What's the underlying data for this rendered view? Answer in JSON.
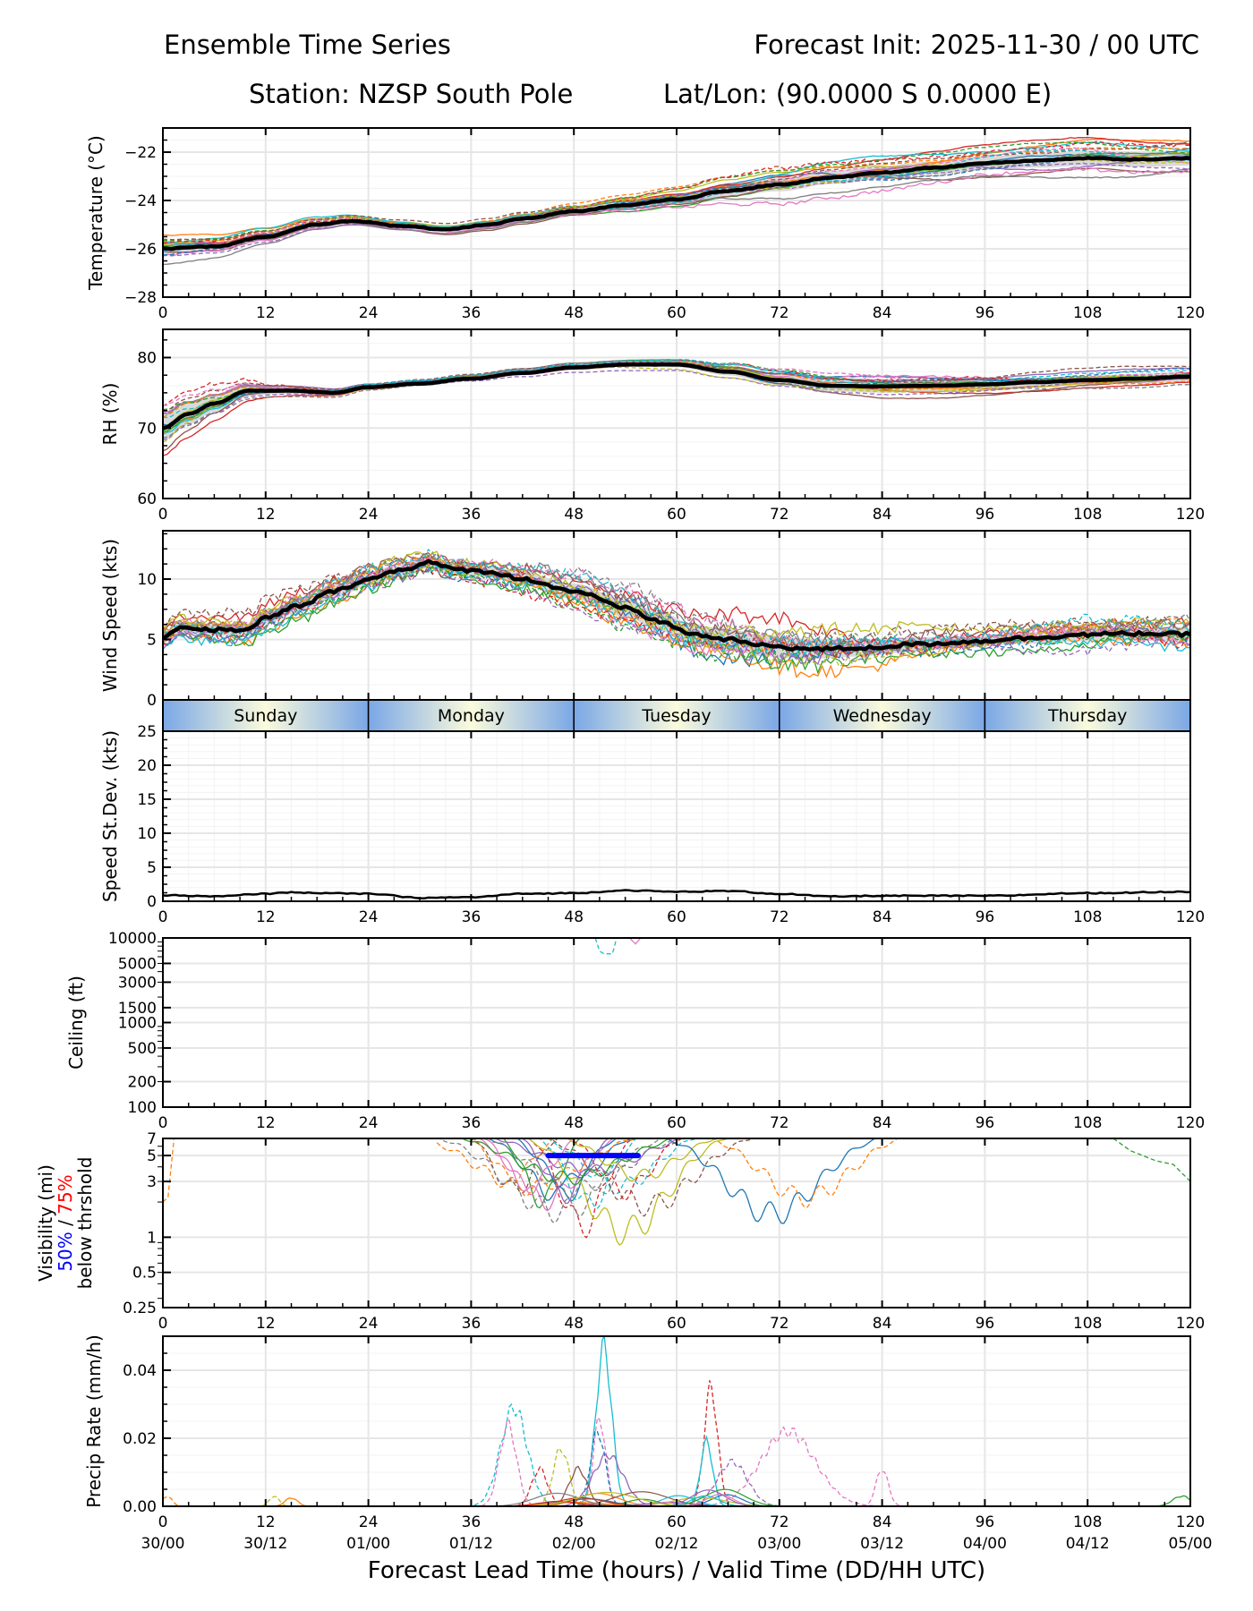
{
  "header": {
    "title_left": "Ensemble Time Series",
    "title_right": "Forecast Init: 2025-11-30 / 00 UTC",
    "station": "Station: NZSP South Pole",
    "latlon": "Lat/Lon: (90.0000 S 0.0000 E)"
  },
  "colors": {
    "mean": "#000000",
    "spread": "#d9d9d9",
    "grid": "#e6e6e6",
    "threshold50": "#0000ff",
    "threshold75": "#ff0000",
    "day_band_edge": "#7aa7e6",
    "day_band_center": "#fbfbdc",
    "members": [
      "#1f77b4",
      "#ff7f0e",
      "#2ca02c",
      "#d62728",
      "#9467bd",
      "#8c564b",
      "#e377c2",
      "#7f7f7f",
      "#bcbd22",
      "#17becf"
    ]
  },
  "chart_data": {
    "type": "line",
    "x_range": [
      0,
      120
    ],
    "x_ticks": [
      0,
      12,
      24,
      36,
      48,
      60,
      72,
      84,
      96,
      108,
      120
    ],
    "x_tick_labels_valid": [
      "30/00",
      "30/12",
      "01/00",
      "01/12",
      "02/00",
      "02/12",
      "03/00",
      "03/12",
      "04/00",
      "04/12",
      "05/00"
    ],
    "xlabel": "Forecast Lead Time (hours) / Valid Time (DD/HH UTC)",
    "grid": true,
    "day_band": [
      "Sunday",
      "Monday",
      "Tuesday",
      "Wednesday",
      "Thursday"
    ],
    "panels": [
      {
        "id": "temperature",
        "ylabel": "Temperature (°C)",
        "scale": "linear",
        "ylim": [
          -28,
          -21
        ],
        "y_ticks": [
          -28,
          -26,
          -24,
          -22
        ],
        "y_tick_labels": [
          "−28",
          "−26",
          "−24",
          "−22"
        ],
        "mean": [
          [
            0,
            -26.0
          ],
          [
            6,
            -25.9
          ],
          [
            12,
            -25.5
          ],
          [
            18,
            -25.0
          ],
          [
            22,
            -24.85
          ],
          [
            28,
            -25.05
          ],
          [
            33,
            -25.2
          ],
          [
            38,
            -25.0
          ],
          [
            42,
            -24.75
          ],
          [
            48,
            -24.45
          ],
          [
            54,
            -24.2
          ],
          [
            60,
            -23.95
          ],
          [
            66,
            -23.6
          ],
          [
            72,
            -23.35
          ],
          [
            78,
            -23.05
          ],
          [
            84,
            -22.85
          ],
          [
            90,
            -22.65
          ],
          [
            96,
            -22.45
          ],
          [
            102,
            -22.35
          ],
          [
            108,
            -22.25
          ],
          [
            114,
            -22.3
          ],
          [
            120,
            -22.25
          ]
        ],
        "spread": [
          0.5,
          0.3,
          0.2,
          0.2,
          0.3,
          0.4,
          0.6,
          0.6,
          0.6,
          0.7,
          0.7
        ],
        "members": 20
      },
      {
        "id": "rh",
        "ylabel": "RH (%)",
        "scale": "linear",
        "ylim": [
          60,
          84
        ],
        "y_ticks": [
          60,
          70,
          80
        ],
        "y_tick_labels": [
          "60",
          "70",
          "80"
        ],
        "mean": [
          [
            0,
            70.0
          ],
          [
            3,
            72.0
          ],
          [
            6,
            73.5
          ],
          [
            10,
            75.3
          ],
          [
            15,
            75.3
          ],
          [
            20,
            75.0
          ],
          [
            24,
            75.8
          ],
          [
            30,
            76.3
          ],
          [
            36,
            77.0
          ],
          [
            42,
            77.8
          ],
          [
            48,
            78.6
          ],
          [
            54,
            79.0
          ],
          [
            60,
            79.0
          ],
          [
            66,
            78.0
          ],
          [
            72,
            76.8
          ],
          [
            78,
            76.0
          ],
          [
            84,
            75.9
          ],
          [
            90,
            76.0
          ],
          [
            96,
            76.2
          ],
          [
            102,
            76.5
          ],
          [
            108,
            76.8
          ],
          [
            114,
            77.0
          ],
          [
            120,
            77.3
          ]
        ],
        "spread": [
          4,
          1.2,
          0.6,
          0.5,
          0.6,
          0.8,
          1.6,
          2.0,
          1.6,
          1.4,
          1.6
        ],
        "members": 20
      },
      {
        "id": "wind",
        "ylabel": "Wind Speed (kts)",
        "scale": "linear",
        "ylim": [
          0,
          14
        ],
        "y_ticks": [
          0,
          5,
          10
        ],
        "y_tick_labels": [
          "0",
          "5",
          "10"
        ],
        "mean": [
          [
            0,
            5.2
          ],
          [
            2,
            6.0
          ],
          [
            6,
            5.8
          ],
          [
            10,
            5.8
          ],
          [
            12,
            6.8
          ],
          [
            16,
            7.8
          ],
          [
            20,
            9.0
          ],
          [
            24,
            10.0
          ],
          [
            28,
            10.8
          ],
          [
            31,
            11.4
          ],
          [
            34,
            10.8
          ],
          [
            38,
            10.6
          ],
          [
            42,
            10.0
          ],
          [
            48,
            9.0
          ],
          [
            54,
            7.6
          ],
          [
            58,
            6.5
          ],
          [
            62,
            5.4
          ],
          [
            66,
            5.0
          ],
          [
            70,
            4.5
          ],
          [
            76,
            4.2
          ],
          [
            82,
            4.3
          ],
          [
            88,
            4.6
          ],
          [
            94,
            4.8
          ],
          [
            100,
            5.1
          ],
          [
            108,
            5.4
          ],
          [
            114,
            5.5
          ],
          [
            120,
            5.4
          ]
        ],
        "spread": [
          1.0,
          1.2,
          1.3,
          1.0,
          1.4,
          1.8,
          2.0,
          1.4,
          1.0,
          1.2,
          1.4
        ],
        "members": 20
      },
      {
        "id": "stdev",
        "ylabel": "Speed St.Dev. (kts)",
        "scale": "linear",
        "ylim": [
          0,
          25
        ],
        "y_ticks": [
          0,
          5,
          10,
          15,
          20,
          25
        ],
        "y_tick_labels": [
          "0",
          "5",
          "10",
          "15",
          "20",
          "25"
        ],
        "mean": [
          [
            0,
            0.9
          ],
          [
            6,
            0.7
          ],
          [
            12,
            1.1
          ],
          [
            14,
            1.3
          ],
          [
            24,
            1.1
          ],
          [
            30,
            0.5
          ],
          [
            36,
            0.6
          ],
          [
            42,
            1.1
          ],
          [
            48,
            1.2
          ],
          [
            54,
            1.6
          ],
          [
            60,
            1.4
          ],
          [
            66,
            1.5
          ],
          [
            72,
            1.1
          ],
          [
            78,
            0.7
          ],
          [
            84,
            0.8
          ],
          [
            96,
            0.8
          ],
          [
            108,
            1.2
          ],
          [
            120,
            1.4
          ]
        ],
        "members": 0
      },
      {
        "id": "ceiling",
        "ylabel": "Ceiling (ft)",
        "scale": "log",
        "ylim": [
          100,
          10000
        ],
        "y_ticks": [
          100,
          200,
          500,
          1000,
          1500,
          3000,
          5000,
          10000
        ],
        "y_tick_labels": [
          "100",
          "200",
          "500",
          "1000",
          "1500",
          "3000",
          "5000",
          "10000"
        ],
        "fragments": [
          {
            "color_index": 9,
            "dash": true,
            "points": [
              [
                50.5,
                10000
              ],
              [
                51,
                7000
              ],
              [
                51.5,
                6500
              ],
              [
                52.5,
                6500
              ],
              [
                53,
                10000
              ]
            ]
          },
          {
            "color_index": 6,
            "dash": false,
            "points": [
              [
                54.5,
                10000
              ],
              [
                55.2,
                8500
              ],
              [
                55.8,
                10000
              ]
            ]
          }
        ]
      },
      {
        "id": "visibility",
        "ylabel": "Visibility (mi)",
        "ylabel_50": "50%",
        "ylabel_sep": " / ",
        "ylabel_75": "75%",
        "ylabel_line3": "below thrshold",
        "scale": "log",
        "ylim": [
          0.25,
          7
        ],
        "y_ticks": [
          0.25,
          0.5,
          1,
          3,
          5,
          7
        ],
        "y_tick_labels": [
          "0.25",
          "0.5",
          "1",
          "3",
          "5",
          "7"
        ],
        "threshold_bar": {
          "x_start": 45,
          "x_end": 55.5,
          "y": 5,
          "label": "50% below threshold"
        },
        "dip_window": [
          32,
          87
        ],
        "dip_min": 1.0
      },
      {
        "id": "precip",
        "ylabel": "Precip Rate (mm/h)",
        "scale": "linear",
        "ylim": [
          0,
          0.05
        ],
        "y_ticks": [
          0,
          0.02,
          0.04
        ],
        "y_tick_labels": [
          "0.00",
          "0.02",
          "0.04"
        ],
        "peaks": [
          {
            "color_index": 9,
            "x": 41,
            "y": 0.029,
            "w": 2.2
          },
          {
            "color_index": 6,
            "x": 40.3,
            "y": 0.024,
            "w": 1.4
          },
          {
            "color_index": 9,
            "x": 51.5,
            "y": 0.047,
            "w": 1.3
          },
          {
            "color_index": 3,
            "x": 64,
            "y": 0.035,
            "w": 1.1
          },
          {
            "color_index": 6,
            "x": 73,
            "y": 0.022,
            "w": 4.5
          },
          {
            "color_index": 9,
            "x": 63.5,
            "y": 0.019,
            "w": 1.0
          },
          {
            "color_index": 6,
            "x": 51.0,
            "y": 0.026,
            "w": 1.0
          },
          {
            "color_index": 0,
            "x": 50.8,
            "y": 0.022,
            "w": 1.2
          },
          {
            "color_index": 4,
            "x": 52.0,
            "y": 0.015,
            "w": 2.5
          },
          {
            "color_index": 4,
            "x": 66.5,
            "y": 0.013,
            "w": 2.5
          },
          {
            "color_index": 8,
            "x": 46.5,
            "y": 0.017,
            "w": 1.3
          },
          {
            "color_index": 5,
            "x": 48.5,
            "y": 0.011,
            "w": 1.5
          },
          {
            "color_index": 6,
            "x": 84,
            "y": 0.011,
            "w": 1.0
          },
          {
            "color_index": 3,
            "x": 44,
            "y": 0.011,
            "w": 1.3
          },
          {
            "color_index": 2,
            "x": 119,
            "y": 0.003,
            "w": 1.5
          },
          {
            "color_index": 1,
            "x": 0.5,
            "y": 0.003,
            "w": 0.8
          },
          {
            "color_index": 8,
            "x": 13,
            "y": 0.003,
            "w": 0.8
          },
          {
            "color_index": 1,
            "x": 15,
            "y": 0.0025,
            "w": 1.0
          }
        ]
      }
    ]
  }
}
